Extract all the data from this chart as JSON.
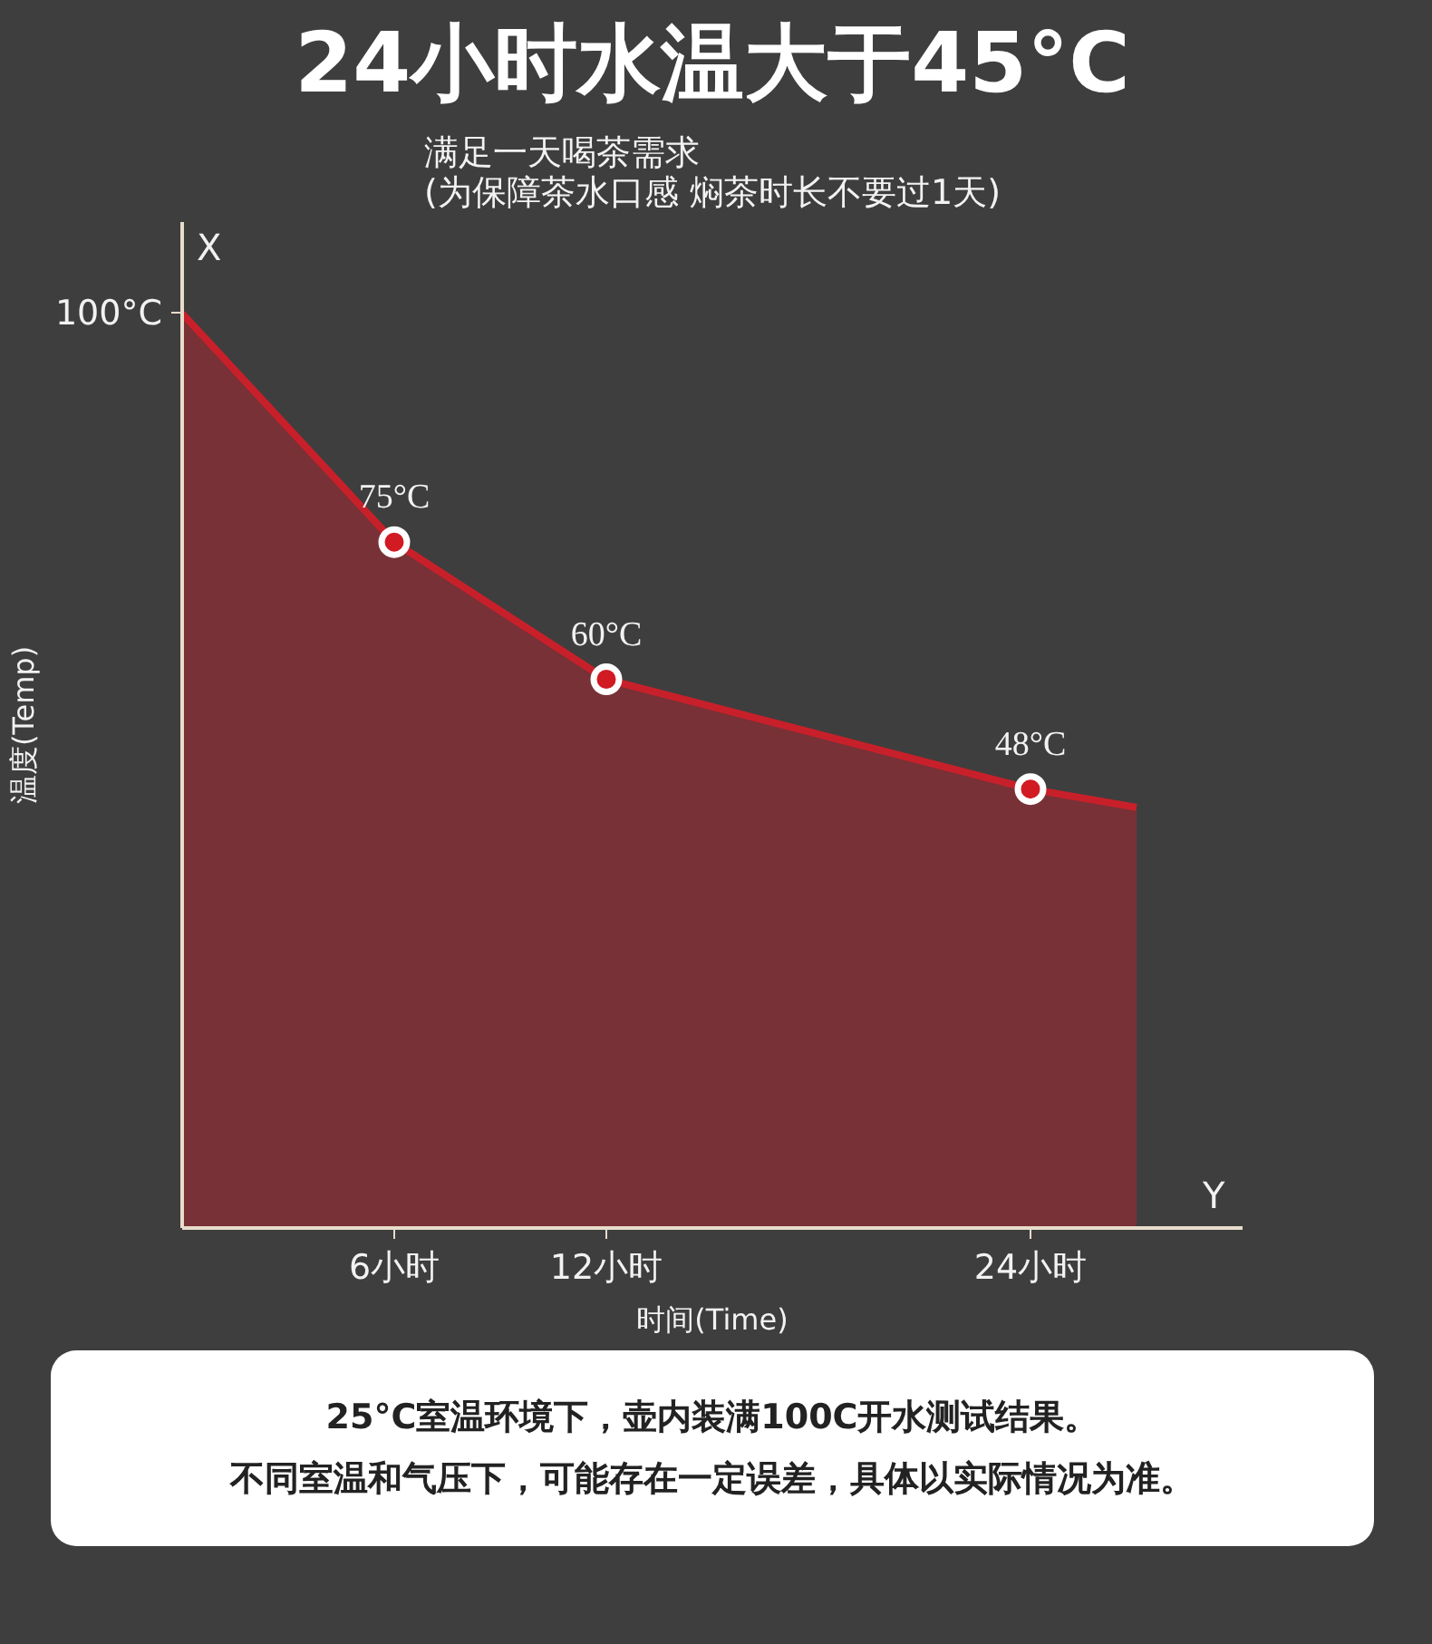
{
  "chart_data": {
    "type": "area",
    "title": "24小时水温大于45°C",
    "subtitle": "满足一天喝茶需求\n(为保障茶水口感 焖茶时长不要过1天)",
    "xlabel": "时间(Time)",
    "ylabel": "温度(Temp)",
    "xlim": [
      0,
      30
    ],
    "ylim": [
      0,
      110
    ],
    "xticks": [
      {
        "value": 6,
        "label": "6小时"
      },
      {
        "value": 12,
        "label": "12小时"
      },
      {
        "value": 24,
        "label": "24小时"
      }
    ],
    "yticks": [
      {
        "value": 100,
        "label": "100°C"
      }
    ],
    "grid": false,
    "series": [
      {
        "color": "#c8202a",
        "x": [
          0,
          6,
          12,
          24,
          27
        ],
        "values": [
          100,
          75,
          60,
          48,
          46
        ]
      },
      {
        "type": "scatter",
        "color": "#d11a22",
        "marker": "circle",
        "x": [
          6,
          12,
          24
        ],
        "values": [
          75,
          60,
          48
        ],
        "value_labels": [
          "75°C",
          "60°C",
          "48°C"
        ]
      }
    ],
    "annotations": [
      "X",
      "Y",
      "25°C室温环境下，壶内装满100C开水测试结果。",
      "不同室温和气压下，可能存在一定误差，具体以实际情况为准。"
    ]
  }
}
